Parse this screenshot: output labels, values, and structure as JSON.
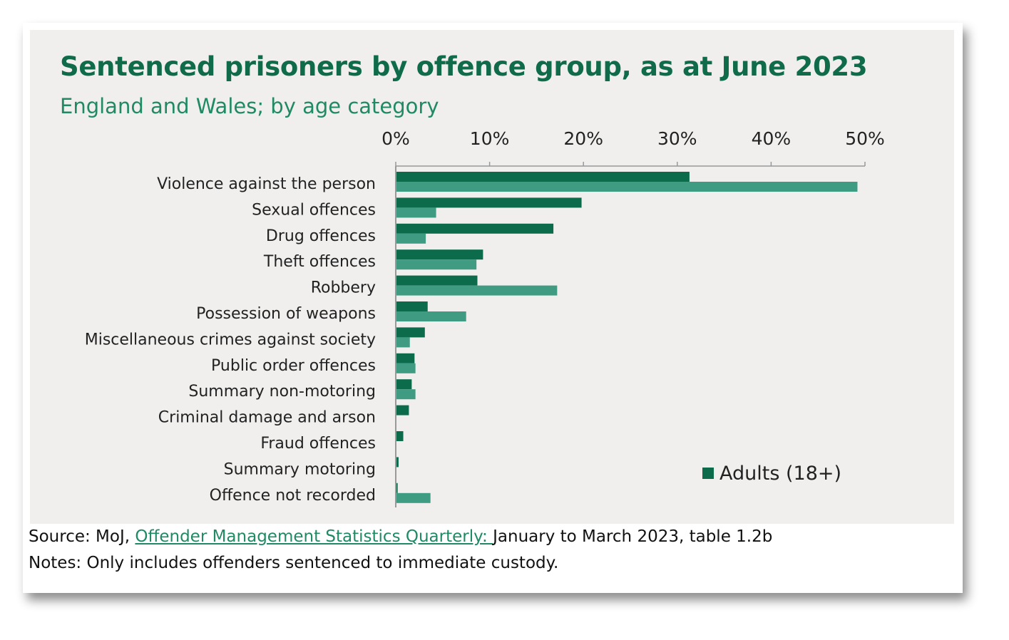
{
  "chart_data": {
    "type": "bar",
    "orientation": "horizontal",
    "title": "Sentenced prisoners by offence group, as at June 2023",
    "subtitle": "England and Wales; by age category",
    "categories": [
      "Violence against the person",
      "Sexual offences",
      "Drug offences",
      "Theft offences",
      "Robbery",
      "Possession of weapons",
      "Miscellaneous crimes against society",
      "Public order offences",
      "Summary non-motoring",
      "Criminal damage and arson",
      "Fraud offences",
      "Summary motoring",
      "Offence not recorded"
    ],
    "series": [
      {
        "name": "Adults (18+)",
        "color": "#0b6b4b",
        "values": [
          31.3,
          19.8,
          16.8,
          9.3,
          8.7,
          3.4,
          3.1,
          2.0,
          1.7,
          1.4,
          0.8,
          0.3,
          0.2
        ]
      },
      {
        "name": "",
        "color": "#3f9c82",
        "values": [
          49.2,
          4.3,
          3.2,
          8.6,
          17.2,
          7.5,
          1.5,
          2.1,
          2.1,
          0,
          0,
          0,
          3.7
        ]
      }
    ],
    "xlim": [
      0,
      50
    ],
    "x_ticks": [
      "0%",
      "10%",
      "20%",
      "30%",
      "40%",
      "50%"
    ],
    "x_tick_values": [
      0,
      10,
      20,
      30,
      40,
      50
    ],
    "xlabel": "",
    "ylabel": "",
    "legend": {
      "placement": "bottom-right",
      "entries": [
        "Adults (18+)"
      ]
    }
  },
  "footer": {
    "source_prefix": "Source:  MoJ, ",
    "source_link": "Offender Management Statistics Quarterly: ",
    "source_suffix": " January to March 2023, table 1.2b",
    "notes": "Notes: Only includes offenders sentenced to immediate custody."
  }
}
